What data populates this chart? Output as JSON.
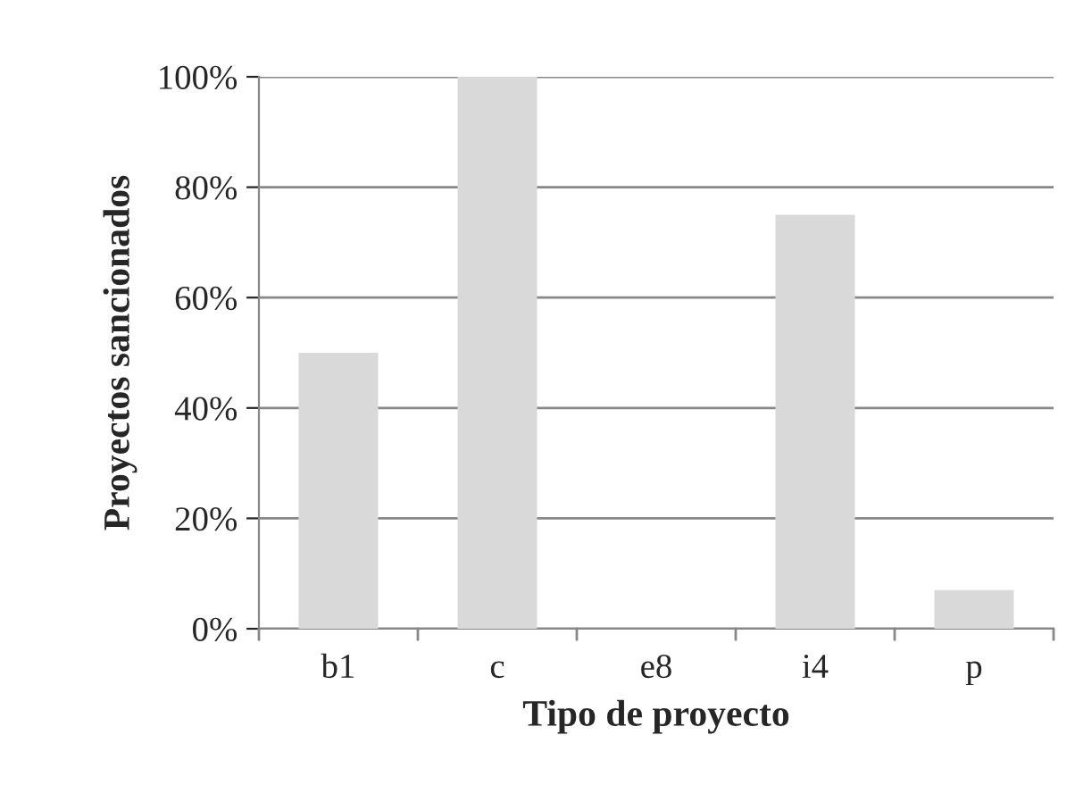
{
  "chart_data": {
    "type": "bar",
    "xlabel": "Tipo de proyecto",
    "ylabel": "Proyectos sancionados",
    "categories": [
      "b1",
      "c",
      "e8",
      "i4",
      "p"
    ],
    "values": [
      50,
      100,
      0,
      75,
      7
    ],
    "color": "#d9d9d9",
    "ylim": [
      0,
      100
    ],
    "yticks": [
      {
        "value": 0,
        "label": "0%"
      },
      {
        "value": 20,
        "label": "20%"
      },
      {
        "value": 40,
        "label": "40%"
      },
      {
        "value": 60,
        "label": "60%"
      },
      {
        "value": 80,
        "label": "80%"
      },
      {
        "value": 100,
        "label": "100%"
      }
    ],
    "grid": "y",
    "legend": false
  }
}
